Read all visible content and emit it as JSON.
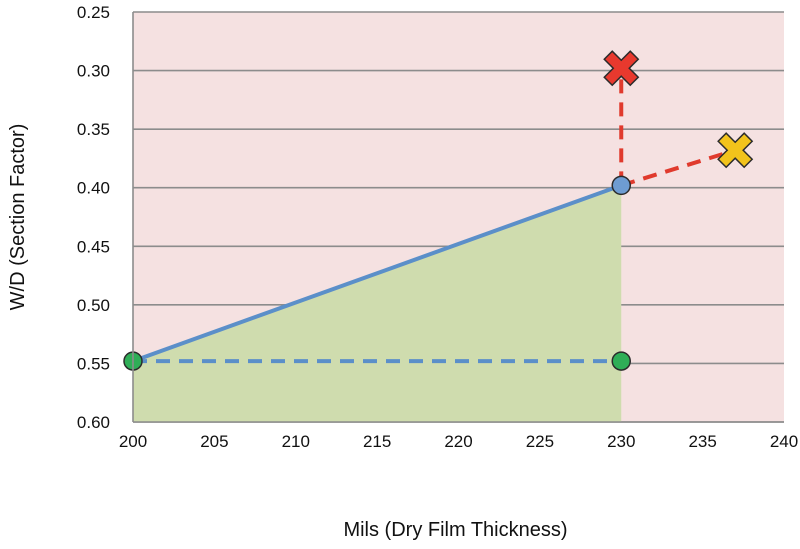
{
  "chart_data": {
    "type": "line",
    "xlabel": "Mils (Dry Film Thickness)",
    "ylabel": "W/D (Section Factor)",
    "xlim": [
      200,
      240
    ],
    "ylim": [
      0.25,
      0.6
    ],
    "y_axis_inverted": true,
    "x_ticks": [
      "200",
      "205",
      "210",
      "215",
      "220",
      "225",
      "230",
      "235",
      "240"
    ],
    "y_ticks": [
      "0.25",
      "0.30",
      "0.35",
      "0.40",
      "0.45",
      "0.50",
      "0.55",
      "0.60"
    ],
    "grid": "horizontal",
    "background_color": "#f5e1e1",
    "series": [
      {
        "style": "solid-area",
        "color": "#5b8fc9",
        "fill": "#cfdcae",
        "x": [
          200,
          230
        ],
        "y": [
          0.548,
          0.398
        ]
      },
      {
        "style": "dashed",
        "color": "#5b8fc9",
        "x": [
          200,
          230
        ],
        "y": [
          0.548,
          0.548
        ]
      },
      {
        "style": "dashed",
        "color": "#e03a2d",
        "x": [
          230,
          230
        ],
        "y": [
          0.398,
          0.298
        ]
      },
      {
        "style": "dashed",
        "color": "#e03a2d",
        "x": [
          230,
          237
        ],
        "y": [
          0.398,
          0.368
        ]
      }
    ],
    "markers": [
      {
        "shape": "circle",
        "color": "#2fae57",
        "x": 200,
        "y": 0.548
      },
      {
        "shape": "circle",
        "color": "#2fae57",
        "x": 230,
        "y": 0.548
      },
      {
        "shape": "circle",
        "color": "#6e9cd2",
        "x": 230,
        "y": 0.398
      },
      {
        "shape": "cross",
        "color": "#e8392e",
        "x": 230,
        "y": 0.298
      },
      {
        "shape": "cross",
        "color": "#f2c31b",
        "x": 237,
        "y": 0.368
      }
    ]
  }
}
